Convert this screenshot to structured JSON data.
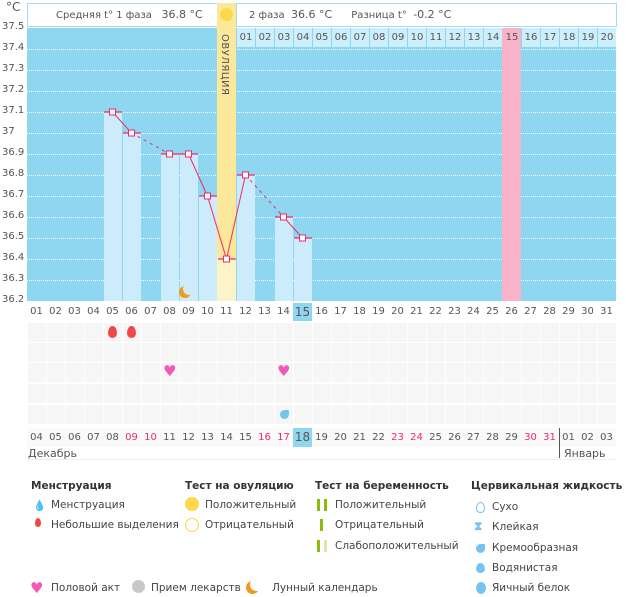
{
  "header": {
    "phase1_label": "Средняя t° 1 фаза",
    "phase1_value": "36.8 °C",
    "phase2_label": "2 фаза",
    "phase2_value": "36.6 °C",
    "diff_label": "Разница t°",
    "diff_value": "-0.2 °C",
    "ovulation_label": "ОВУЛЯЦИЯ"
  },
  "chart_data": {
    "type": "line",
    "ylabel": "°C",
    "ylim": [
      36.2,
      37.5
    ],
    "yticks": [
      "37.5",
      "37.4",
      "37.3",
      "37.2",
      "37.1",
      "37",
      "36.9",
      "36.8",
      "36.7",
      "36.6",
      "36.5",
      "36.4",
      "36.3",
      "36.2"
    ],
    "grid": true,
    "cycle_days": [
      "01",
      "02",
      "03",
      "04",
      "05",
      "06",
      "07",
      "08",
      "09",
      "10",
      "11",
      "12",
      "13",
      "14",
      "15",
      "16",
      "17",
      "18",
      "19",
      "20",
      "21",
      "22",
      "23",
      "24",
      "25",
      "26",
      "27",
      "28",
      "29",
      "30",
      "31"
    ],
    "current_cycle_day": "15",
    "ovulation_day": "11",
    "post_ovulation_days": [
      "01",
      "02",
      "03",
      "04",
      "05",
      "06",
      "07",
      "08",
      "09",
      "10",
      "11",
      "12",
      "13",
      "14",
      "15",
      "16",
      "17",
      "18",
      "19",
      "20"
    ],
    "expected_period_post_day": "15",
    "series": [
      {
        "points": [
          {
            "day": 5,
            "t": 37.1
          },
          {
            "day": 6,
            "t": 37.0
          },
          {
            "day": 8,
            "t": 36.9
          },
          {
            "day": 9,
            "t": 36.9
          },
          {
            "day": 10,
            "t": 36.7
          },
          {
            "day": 11,
            "t": 36.4
          },
          {
            "day": 12,
            "t": 36.8
          },
          {
            "day": 14,
            "t": 36.6
          },
          {
            "day": 15,
            "t": 36.5
          }
        ]
      }
    ],
    "dates": [
      "04",
      "05",
      "06",
      "07",
      "08",
      "09",
      "10",
      "11",
      "12",
      "13",
      "14",
      "15",
      "16",
      "17",
      "18",
      "19",
      "20",
      "21",
      "22",
      "23",
      "24",
      "25",
      "26",
      "27",
      "28",
      "29",
      "30",
      "31",
      "01",
      "02",
      "03"
    ],
    "weekend_dates_idx": [
      5,
      6,
      12,
      13,
      19,
      20,
      26,
      27
    ],
    "today_date": "18",
    "months": [
      "Декабрь",
      "Январь"
    ],
    "markers": {
      "menstruation": [
        5,
        6
      ],
      "intercourse": [
        8,
        14
      ],
      "cervical_creamy": [
        14
      ],
      "lunar": [
        9
      ]
    }
  },
  "colors": {
    "plot": "#8fd6f1",
    "bar": "#ccecfb",
    "ovulation": "#fbe89a",
    "period": "#f9b3c9",
    "line": "#ee2b64",
    "weekend": "#ee2b64"
  },
  "legend": {
    "menstruation": {
      "title": "Менструация",
      "items": [
        "Менструация",
        "Небольшие выделения"
      ]
    },
    "ovulation_test": {
      "title": "Тест на овуляцию",
      "items": [
        "Положительный",
        "Отрицательный"
      ]
    },
    "pregnancy_test": {
      "title": "Тест на беременность",
      "items": [
        "Положительный",
        "Отрицательный",
        "Слабоположительный"
      ]
    },
    "cervical": {
      "title": "Цервикальная жидкость",
      "items": [
        "Сухо",
        "Клейкая",
        "Кремообразная",
        "Водянистая",
        "Яичный белок"
      ]
    },
    "other": [
      "Половой акт",
      "Прием лекарств",
      "Лунный календарь"
    ]
  }
}
